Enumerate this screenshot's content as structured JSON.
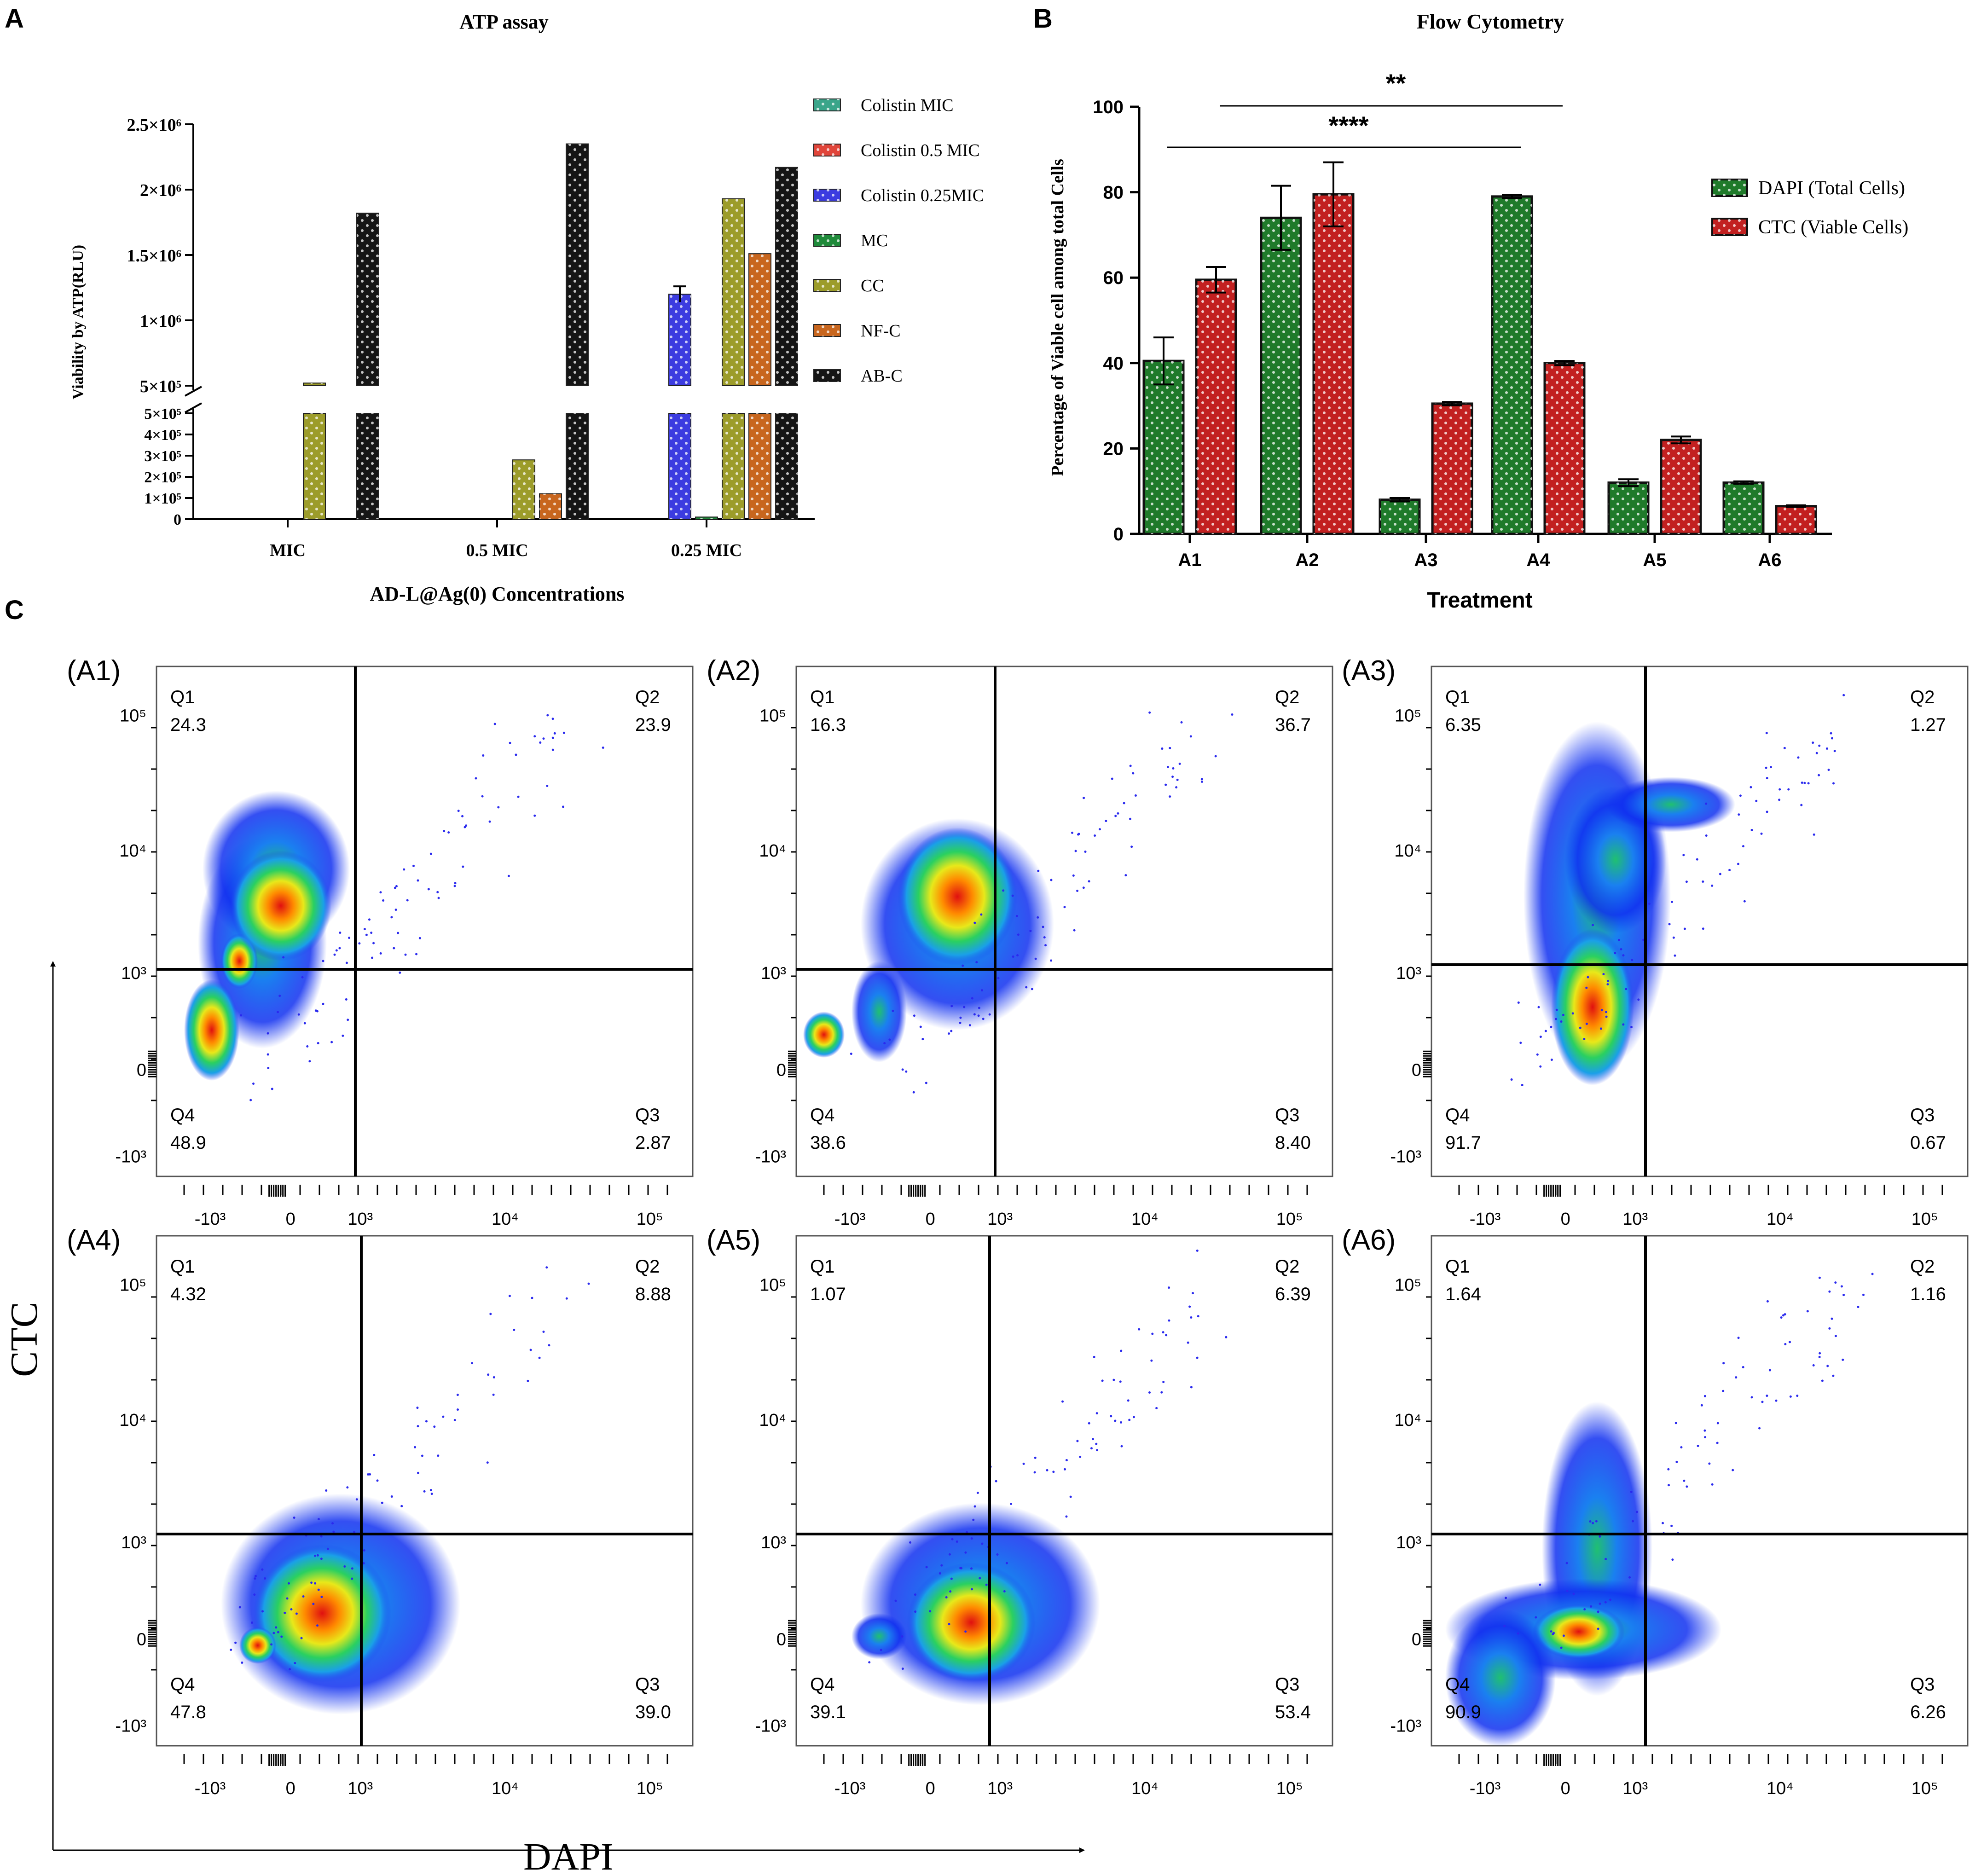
{
  "panel_labels": {
    "a": "A",
    "b": "B",
    "c": "C"
  },
  "chart_data": [
    {
      "id": "A",
      "type": "bar",
      "title": "ATP assay",
      "xlabel": "AD-L@Ag(0) Concentrations",
      "ylabel": "Viability by ATP(RLU)",
      "categories": [
        "MIC",
        "0.5 MIC",
        "0.25 MIC"
      ],
      "series": [
        {
          "name": "Colistin MIC",
          "color": "#3aa58a",
          "values": [
            0,
            0,
            0
          ]
        },
        {
          "name": "Colistin 0.5 MIC",
          "color": "#e0453a",
          "values": [
            0,
            0,
            0
          ]
        },
        {
          "name": "Colistin 0.25MIC",
          "color": "#3c3ce0",
          "values": [
            0,
            0,
            1200000
          ]
        },
        {
          "name": "MC",
          "color": "#1f8a3a",
          "values": [
            0,
            0,
            10000
          ]
        },
        {
          "name": "CC",
          "color": "#9c9c2a",
          "values": [
            520000,
            280000,
            1930000
          ]
        },
        {
          "name": "NF-C",
          "color": "#c8661e",
          "values": [
            0,
            120000,
            1510000
          ]
        },
        {
          "name": "AB-C",
          "color": "#151515",
          "values": [
            1820000,
            2350000,
            2170000
          ]
        }
      ],
      "errors": {
        "Colistin 0.25MIC": [
          0,
          0,
          60000
        ]
      },
      "yaxis_upper": {
        "ticks": [
          500000,
          1000000,
          1500000,
          2000000,
          2500000
        ],
        "tick_labels": [
          "5×10⁵",
          "1×10⁶",
          "1.5×10⁶",
          "2×10⁶",
          "2.5×10⁶"
        ],
        "ylim": [
          500000,
          2500000
        ]
      },
      "yaxis_lower": {
        "ticks": [
          0,
          100000,
          200000,
          300000,
          400000,
          500000
        ],
        "tick_labels": [
          "0",
          "1×10⁵",
          "2×10⁵",
          "3×10⁵",
          "4×10⁵",
          "5×10⁵"
        ],
        "ylim": [
          0,
          500000
        ]
      },
      "legend_position": "right"
    },
    {
      "id": "B",
      "type": "bar",
      "title": "Flow Cytometry",
      "xlabel": "Treatment",
      "ylabel": "Percentage of Viable cell among total Cells",
      "categories": [
        "A1",
        "A2",
        "A3",
        "A4",
        "A5",
        "A6"
      ],
      "series": [
        {
          "name": "DAPI (Total Cells)",
          "color": "#1f7a2a",
          "values": [
            40.5,
            74,
            8,
            79,
            12,
            12
          ],
          "errors": [
            5.5,
            7.5,
            0.4,
            0.4,
            0.8,
            0.3
          ]
        },
        {
          "name": "CTC (Viable Cells)",
          "color": "#c22020",
          "values": [
            59.5,
            79.5,
            30.5,
            40,
            22,
            6.5
          ],
          "errors": [
            3,
            7.5,
            0.4,
            0.5,
            0.8,
            0.2
          ]
        }
      ],
      "ylim": [
        0,
        100
      ],
      "yticks": [
        0,
        20,
        40,
        60,
        80,
        100
      ],
      "significance": [
        {
          "label": "**",
          "from": "A2",
          "to": "A4"
        },
        {
          "label": "****",
          "from": "A1",
          "to": "A4"
        }
      ],
      "legend_position": "top-right"
    },
    {
      "id": "C",
      "type": "scatter",
      "xlabel": "DAPI",
      "ylabel": "CTC",
      "x_tick_labels": [
        "-10³",
        "0",
        "10³",
        "10⁴",
        "10⁵"
      ],
      "y_tick_labels": [
        "10⁵",
        "10⁴",
        "10³",
        "0",
        "-10³"
      ],
      "panels": [
        {
          "name": "(A1)",
          "Q1": "24.3",
          "Q2": "23.9",
          "Q3": "2.87",
          "Q4": "48.9"
        },
        {
          "name": "(A2)",
          "Q1": "16.3",
          "Q2": "36.7",
          "Q3": "8.40",
          "Q4": "38.6"
        },
        {
          "name": "(A3)",
          "Q1": "6.35",
          "Q2": "1.27",
          "Q3": "0.67",
          "Q4": "91.7"
        },
        {
          "name": "(A4)",
          "Q1": "4.32",
          "Q2": "8.88",
          "Q3": "39.0",
          "Q4": "47.8"
        },
        {
          "name": "(A5)",
          "Q1": "1.07",
          "Q2": "6.39",
          "Q3": "53.4",
          "Q4": "39.1"
        },
        {
          "name": "(A6)",
          "Q1": "1.64",
          "Q2": "1.16",
          "Q3": "6.26",
          "Q4": "90.9"
        }
      ],
      "quadrant_labels": [
        "Q1",
        "Q2",
        "Q3",
        "Q4"
      ]
    }
  ]
}
